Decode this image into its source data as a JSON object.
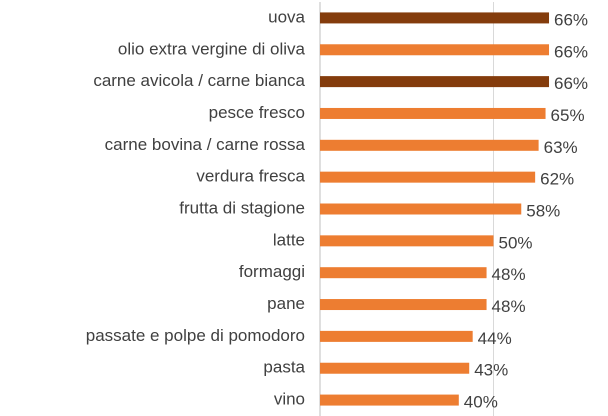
{
  "chart_data": {
    "type": "barh",
    "categories": [
      "uova",
      "olio extra vergine di oliva",
      "carne avicola / carne bianca",
      "pesce fresco",
      "carne bovina / carne rossa",
      "verdura fresca",
      "frutta di stagione",
      "latte",
      "formaggi",
      "pane",
      "passate e polpe di pomodoro",
      "pasta",
      "vino"
    ],
    "values": [
      66,
      66,
      66,
      65,
      63,
      62,
      58,
      50,
      48,
      48,
      44,
      43,
      40
    ],
    "value_labels": [
      "66%",
      "66%",
      "66%",
      "65%",
      "63%",
      "62%",
      "58%",
      "50%",
      "48%",
      "48%",
      "44%",
      "43%",
      "40%"
    ],
    "colors": [
      "#843c0c",
      "#ed7d31",
      "#843c0c",
      "#ed7d31",
      "#ed7d31",
      "#ed7d31",
      "#ed7d31",
      "#ed7d31",
      "#ed7d31",
      "#ed7d31",
      "#ed7d31",
      "#ed7d31",
      "#ed7d31"
    ],
    "xlim": [
      0,
      70
    ],
    "xgrid": [
      0,
      50
    ]
  }
}
